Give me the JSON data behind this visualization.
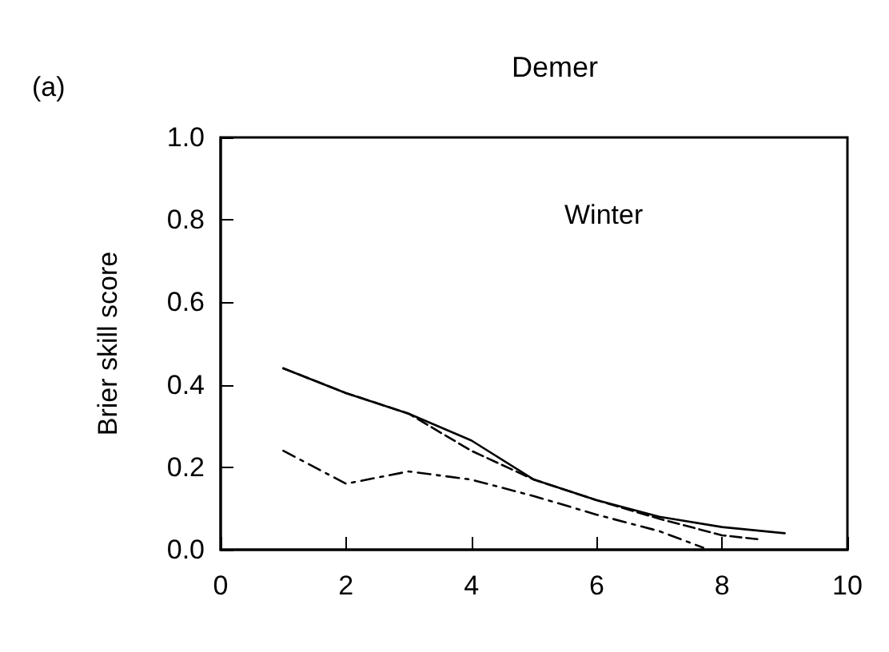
{
  "chart_data": {
    "type": "line",
    "title": "Demer",
    "ylabel": "Brier skill score",
    "annotations": [
      "(a)",
      "Winter"
    ],
    "xlim": [
      0,
      10
    ],
    "xticks": [
      0,
      2,
      4,
      6,
      8,
      10
    ],
    "ylim": [
      0,
      1
    ],
    "yticks": [
      {
        "value": 0,
        "label": "0.0"
      },
      {
        "value": 0.2,
        "label": "0.2"
      },
      {
        "value": 0.4,
        "label": "0.4"
      },
      {
        "value": 0.6,
        "label": "0.6"
      },
      {
        "value": 0.8,
        "label": "0.8"
      },
      {
        "value": 1,
        "label": "1.0"
      }
    ],
    "grid": false,
    "marker": "none",
    "series": [
      {
        "color": "#000000",
        "line_style": "solid",
        "x": [
          1,
          2,
          3,
          4,
          5,
          6,
          7,
          8,
          9
        ],
        "values": [
          0.44,
          0.38,
          0.33,
          0.265,
          0.17,
          0.12,
          0.08,
          0.055,
          0.04
        ]
      },
      {
        "color": "#000000",
        "line_style": "dashed",
        "x": [
          1,
          2,
          3,
          4,
          5,
          6,
          7,
          8,
          8.6
        ],
        "values": [
          0.44,
          0.38,
          0.33,
          0.24,
          0.17,
          0.12,
          0.075,
          0.035,
          0.025
        ]
      },
      {
        "color": "#000000",
        "line_style": "dashdot",
        "x": [
          1,
          2,
          3,
          4,
          5,
          6,
          7,
          7.7
        ],
        "values": [
          0.24,
          0.16,
          0.19,
          0.17,
          0.13,
          0.085,
          0.045,
          0.005
        ]
      }
    ]
  }
}
